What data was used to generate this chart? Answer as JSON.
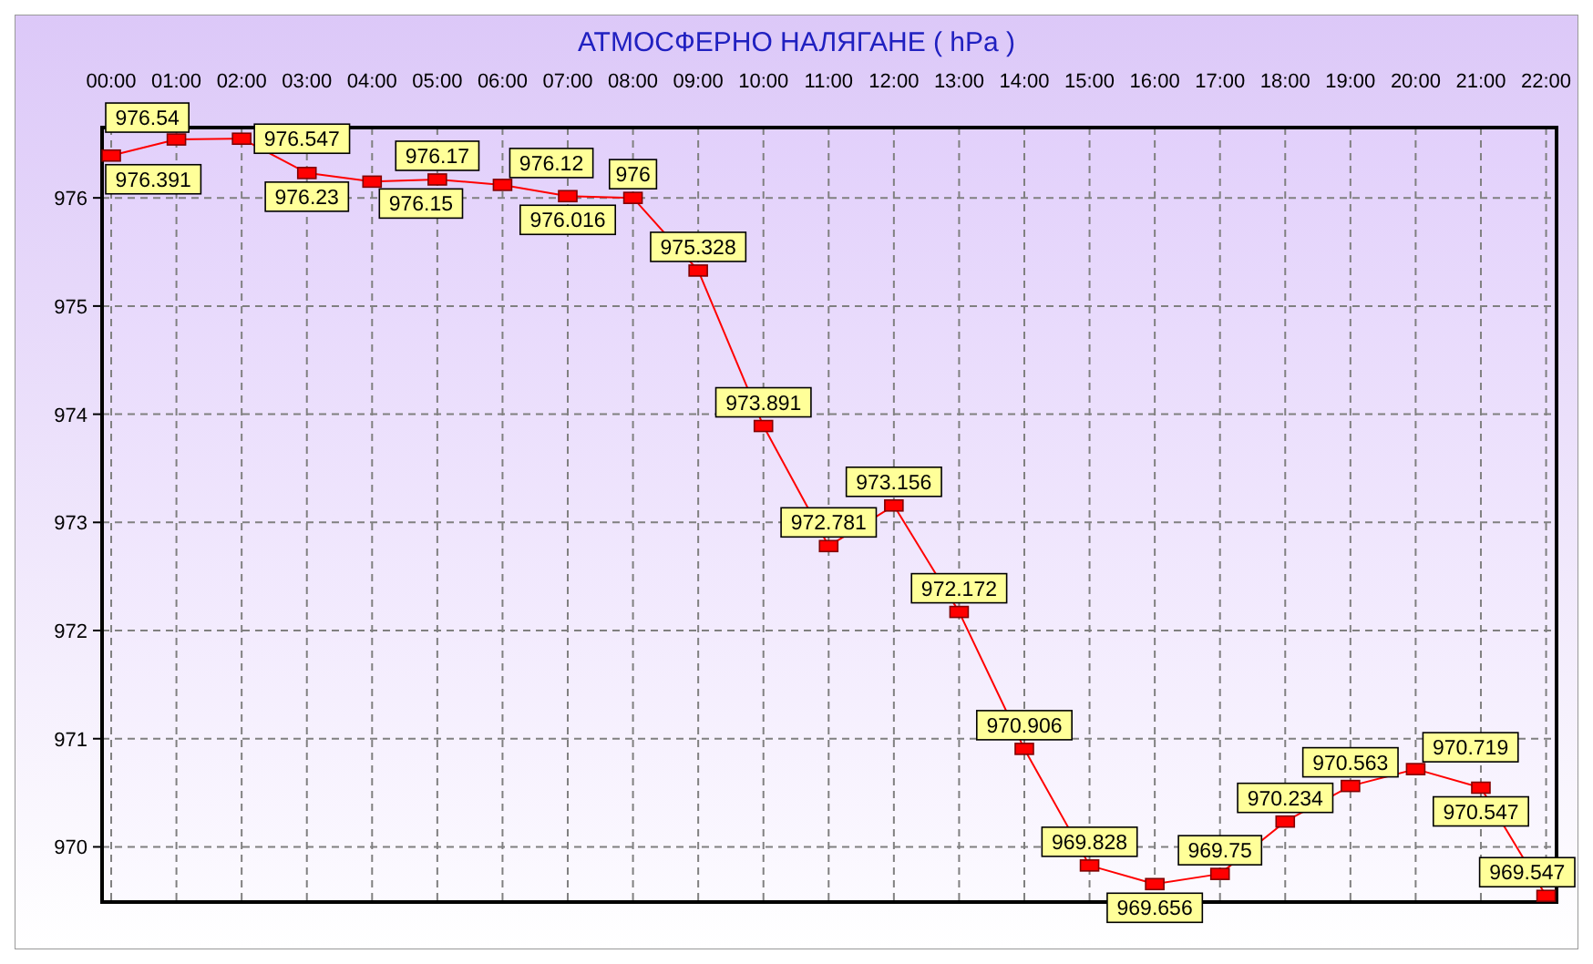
{
  "chart_data": {
    "type": "line",
    "title": "АТМОСФЕРНО НАЛЯГАНЕ  ( hPa )",
    "x": [
      0,
      1,
      2,
      3,
      4,
      5,
      6,
      7,
      8,
      9,
      10,
      11,
      12,
      13,
      14,
      15,
      16,
      17,
      18,
      19,
      20,
      21,
      22
    ],
    "series": [
      {
        "color": "#ff0000",
        "values": [
          976.391,
          976.54,
          976.547,
          976.23,
          976.15,
          976.17,
          976.12,
          976.016,
          976,
          975.328,
          973.891,
          972.781,
          973.156,
          972.172,
          970.906,
          969.828,
          969.656,
          969.75,
          970.234,
          970.563,
          970.719,
          970.547,
          969.547
        ]
      }
    ],
    "xlim": [
      -0.14,
      22.16
    ],
    "xticks": [
      {
        "value": 0,
        "label": "00:00"
      },
      {
        "value": 1,
        "label": "01:00"
      },
      {
        "value": 2,
        "label": "02:00"
      },
      {
        "value": 3,
        "label": "03:00"
      },
      {
        "value": 4,
        "label": "04:00"
      },
      {
        "value": 5,
        "label": "05:00"
      },
      {
        "value": 6,
        "label": "06:00"
      },
      {
        "value": 7,
        "label": "07:00"
      },
      {
        "value": 8,
        "label": "08:00"
      },
      {
        "value": 9,
        "label": "09:00"
      },
      {
        "value": 10,
        "label": "10:00"
      },
      {
        "value": 11,
        "label": "11:00"
      },
      {
        "value": 12,
        "label": "12:00"
      },
      {
        "value": 13,
        "label": "13:00"
      },
      {
        "value": 14,
        "label": "14:00"
      },
      {
        "value": 15,
        "label": "15:00"
      },
      {
        "value": 16,
        "label": "16:00"
      },
      {
        "value": 17,
        "label": "17:00"
      },
      {
        "value": 18,
        "label": "18:00"
      },
      {
        "value": 19,
        "label": "19:00"
      },
      {
        "value": 20,
        "label": "20:00"
      },
      {
        "value": 21,
        "label": "21:00"
      },
      {
        "value": 22,
        "label": "22:00"
      }
    ],
    "ylim": [
      969.49,
      976.65
    ],
    "yticks": [
      970,
      971,
      972,
      973,
      974,
      975,
      976
    ],
    "grid": true,
    "marker": "square",
    "line_style": "solid",
    "data_labels": true
  }
}
